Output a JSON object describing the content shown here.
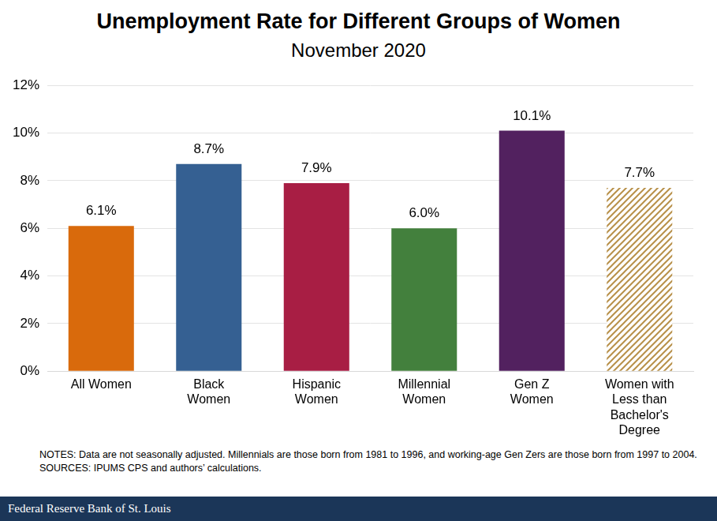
{
  "chart_data": {
    "type": "bar",
    "title": "Unemployment Rate for Different Groups of Women",
    "subtitle": "November 2020",
    "categories": [
      "All Women",
      "Black Women",
      "Hispanic Women",
      "Millennial Women",
      "Gen Z Women",
      "Women with Less than Bachelor's Degree"
    ],
    "values": [
      6.1,
      8.7,
      7.9,
      6.0,
      10.1,
      7.7
    ],
    "value_labels": [
      "6.1%",
      "8.7%",
      "7.9%",
      "6.0%",
      "10.1%",
      "7.7%"
    ],
    "data_labels": true,
    "colors": [
      "#d96a0c",
      "#356092",
      "#a81e44",
      "#43803d",
      "#52215f",
      "#b8914a"
    ],
    "ylim": [
      0,
      12
    ],
    "yticks": [
      {
        "value": 0,
        "label": "0%"
      },
      {
        "value": 2,
        "label": "2%"
      },
      {
        "value": 4,
        "label": "4%"
      },
      {
        "value": 6,
        "label": "6%"
      },
      {
        "value": 8,
        "label": "8%"
      },
      {
        "value": 10,
        "label": "10%"
      },
      {
        "value": 12,
        "label": "12%"
      }
    ],
    "grid": true,
    "notes": "NOTES: Data are not seasonally adjusted. Millennials are those born from 1981 to 1996, and working-age Gen Zers are those born from 1997 to 2004.",
    "sources": "SOURCES: IPUMS CPS and authors’ calculations.",
    "footer": "Federal Reserve Bank of St. Louis"
  }
}
